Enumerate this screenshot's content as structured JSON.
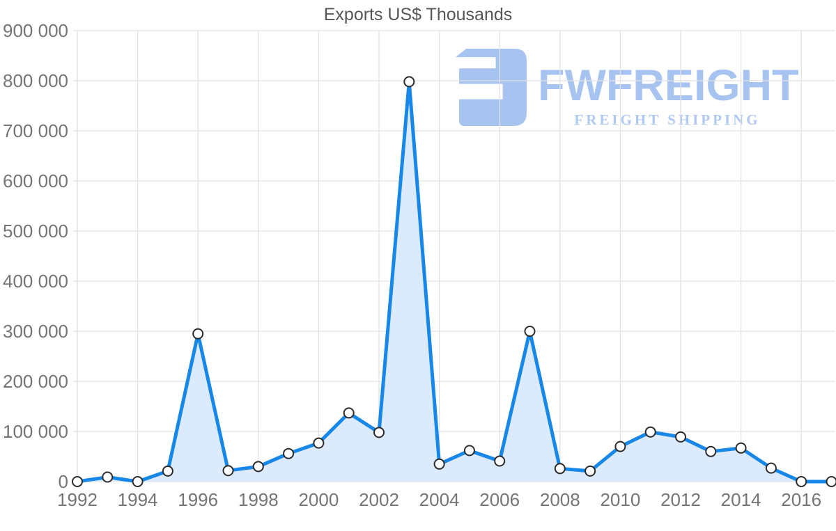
{
  "title": "Exports US$ Thousands",
  "logo": {
    "wordmark": "FWFREIGHT",
    "tagline": "FREIGHT SHIPPING",
    "color": "#a7c3f0"
  },
  "colors": {
    "line": "#1787e8",
    "area_fill": "#dbeafc",
    "marker_fill": "#ffffff",
    "marker_stroke": "#2b2b2b",
    "grid": "#e2e2e2",
    "tick_text": "#757575",
    "title_text": "#565656"
  },
  "chart_data": {
    "type": "area",
    "title": "Exports US$ Thousands",
    "x": [
      1992,
      1993,
      1994,
      1995,
      1996,
      1997,
      1998,
      1999,
      2000,
      2001,
      2002,
      2003,
      2004,
      2005,
      2006,
      2007,
      2008,
      2009,
      2010,
      2011,
      2012,
      2013,
      2014,
      2015,
      2016,
      2017
    ],
    "values": [
      0,
      9000,
      0,
      21000,
      295000,
      22000,
      30000,
      56000,
      77000,
      137000,
      98000,
      798000,
      35000,
      62000,
      41000,
      300000,
      26000,
      21000,
      70000,
      99000,
      89000,
      60000,
      67000,
      27000,
      0,
      0
    ],
    "xlabel": "",
    "ylabel": "",
    "ylim": [
      0,
      900000
    ],
    "ytick_step": 100000,
    "ytick_labels": [
      "0",
      "100 000",
      "200 000",
      "300 000",
      "400 000",
      "500 000",
      "600 000",
      "700 000",
      "800 000",
      "900 000"
    ],
    "xtick_labels": [
      "1992",
      "1994",
      "1996",
      "1998",
      "2000",
      "2002",
      "2004",
      "2006",
      "2008",
      "2010",
      "2012",
      "2014",
      "2016"
    ],
    "xtick_step": 2,
    "grid": true,
    "legend": false,
    "marker": "circle"
  }
}
